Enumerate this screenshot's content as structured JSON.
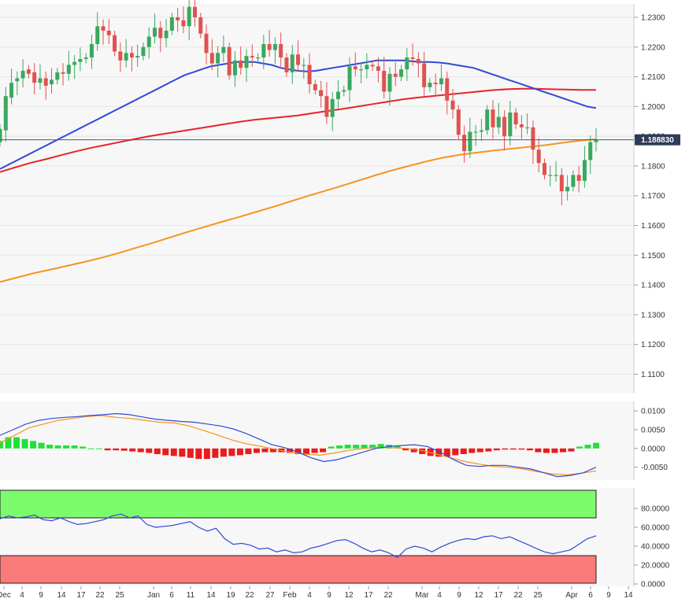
{
  "chart_data": [
    {
      "type": "candlestick",
      "instrument_last_price": "1.188830",
      "y_ticks": [
        "1.2300",
        "1.2200",
        "1.2100",
        "1.2000",
        "1.1900",
        "1.1800",
        "1.1700",
        "1.1600",
        "1.1500",
        "1.1400",
        "1.1300",
        "1.1200",
        "1.1100"
      ],
      "ylim": [
        1.1035,
        1.2345
      ],
      "x_ticks": [
        "Dec",
        "4",
        "9",
        "14",
        "17",
        "22",
        "25",
        "Jan",
        "6",
        "11",
        "14",
        "19",
        "22",
        "27",
        "Feb",
        "4",
        "9",
        "12",
        "17",
        "22",
        "Mar",
        "4",
        "9",
        "12",
        "17",
        "22",
        "25",
        "Apr",
        "6",
        "9",
        "14"
      ],
      "colors": {
        "up": "#3aa85f",
        "down": "#e0524f",
        "sma_fast": "#2f4bd6",
        "sma_mid": "#e8222a",
        "sma_slow": "#f7941d",
        "last_line": "#4a5a78",
        "badge": "#2e3a59"
      },
      "close": [
        1.1925,
        1.2035,
        1.208,
        1.2095,
        1.212,
        1.211,
        1.208,
        1.2095,
        1.207,
        1.209,
        1.2115,
        1.211,
        1.214,
        1.215,
        1.216,
        1.2165,
        1.221,
        1.227,
        1.2255,
        1.224,
        1.2185,
        1.2155,
        1.218,
        1.2165,
        1.217,
        1.22,
        1.2235,
        1.2265,
        1.223,
        1.2255,
        1.23,
        1.229,
        1.227,
        1.2335,
        1.23,
        1.2245,
        1.218,
        1.2145,
        1.218,
        1.22,
        1.2105,
        1.2155,
        1.213,
        1.217,
        1.2165,
        1.2165,
        1.221,
        1.219,
        1.221,
        1.2165,
        1.2115,
        1.2175,
        1.214,
        1.214,
        1.2075,
        1.2055,
        1.2035,
        1.1965,
        1.2025,
        1.205,
        1.2055,
        1.2135,
        1.2125,
        1.2125,
        1.214,
        1.2135,
        1.212,
        1.205,
        1.211,
        1.21,
        1.2125,
        1.2165,
        1.216,
        1.2145,
        1.2065,
        1.208,
        1.2075,
        1.2095,
        1.202,
        1.199,
        1.1905,
        1.185,
        1.1915,
        1.1915,
        1.192,
        1.199,
        1.193,
        1.1965,
        1.19,
        1.198,
        1.194,
        1.193,
        1.193,
        1.1855,
        1.181,
        1.177,
        1.177,
        1.177,
        1.1715,
        1.173,
        1.177,
        1.175,
        1.182,
        1.188,
        1.1888
      ],
      "open": [
        1.188,
        1.192,
        1.203,
        1.2085,
        1.2095,
        1.2125,
        1.2115,
        1.208,
        1.2095,
        1.2075,
        1.209,
        1.2115,
        1.211,
        1.214,
        1.215,
        1.216,
        1.2165,
        1.221,
        1.227,
        1.2255,
        1.224,
        1.2185,
        1.2155,
        1.218,
        1.2165,
        1.217,
        1.22,
        1.2235,
        1.2265,
        1.223,
        1.2255,
        1.23,
        1.229,
        1.227,
        1.2335,
        1.23,
        1.2245,
        1.218,
        1.2145,
        1.218,
        1.22,
        1.2105,
        1.2155,
        1.213,
        1.217,
        1.2165,
        1.2165,
        1.221,
        1.219,
        1.221,
        1.2165,
        1.2115,
        1.2175,
        1.214,
        1.214,
        1.2075,
        1.2055,
        1.2035,
        1.1965,
        1.2025,
        1.205,
        1.2055,
        1.2135,
        1.2125,
        1.2125,
        1.214,
        1.2135,
        1.212,
        1.205,
        1.211,
        1.21,
        1.2125,
        1.2165,
        1.216,
        1.2145,
        1.2065,
        1.208,
        1.2075,
        1.2095,
        1.202,
        1.199,
        1.1905,
        1.185,
        1.1915,
        1.1915,
        1.192,
        1.199,
        1.193,
        1.1965,
        1.19,
        1.198,
        1.194,
        1.193,
        1.193,
        1.1855,
        1.181,
        1.177,
        1.177,
        1.177,
        1.1715,
        1.173,
        1.177,
        1.175,
        1.182,
        1.188
      ],
      "sma_fast": [
        1.179,
        1.1805,
        1.182,
        1.1835,
        1.185,
        1.1865,
        1.188,
        1.1895,
        1.191,
        1.1925,
        1.194,
        1.1955,
        1.197,
        1.1985,
        1.2,
        1.2015,
        1.203,
        1.2045,
        1.206,
        1.2075,
        1.209,
        1.2105,
        1.2115,
        1.2125,
        1.2135,
        1.214,
        1.2145,
        1.215,
        1.215,
        1.215,
        1.2145,
        1.214,
        1.213,
        1.2125,
        1.212,
        1.2118,
        1.212,
        1.2125,
        1.213,
        1.2135,
        1.214,
        1.2145,
        1.215,
        1.2155,
        1.2155,
        1.2155,
        1.2155,
        1.2152,
        1.215,
        1.215,
        1.2148,
        1.2145,
        1.214,
        1.2135,
        1.213,
        1.212,
        1.211,
        1.21,
        1.209,
        1.208,
        1.207,
        1.206,
        1.205,
        1.204,
        1.203,
        1.202,
        1.201,
        1.2,
        1.1995
      ],
      "sma_mid": [
        1.178,
        1.1795,
        1.181,
        1.1822,
        1.1835,
        1.1848,
        1.186,
        1.187,
        1.188,
        1.189,
        1.19,
        1.1908,
        1.1916,
        1.1924,
        1.1932,
        1.194,
        1.1948,
        1.1955,
        1.196,
        1.1965,
        1.197,
        1.1978,
        1.1985,
        1.1992,
        1.2,
        1.2008,
        1.2016,
        1.2024,
        1.203,
        1.2035,
        1.204,
        1.2045,
        1.205,
        1.2055,
        1.2058,
        1.206,
        1.206,
        1.2058,
        1.2057,
        1.2056,
        1.2056
      ],
      "sma_slow": [
        1.141,
        1.1425,
        1.144,
        1.1452,
        1.1465,
        1.1478,
        1.1492,
        1.1508,
        1.1525,
        1.1542,
        1.156,
        1.1578,
        1.1595,
        1.1612,
        1.1628,
        1.1645,
        1.1662,
        1.168,
        1.1698,
        1.1715,
        1.1732,
        1.175,
        1.1768,
        1.1785,
        1.18,
        1.1815,
        1.1828,
        1.1838,
        1.1845,
        1.1852,
        1.1858,
        1.1864,
        1.187,
        1.1878,
        1.1885,
        1.189
      ],
      "macd_line": [
        0.0035,
        0.005,
        0.0065,
        0.0075,
        0.008,
        0.0083,
        0.0085,
        0.0088,
        0.009,
        0.0093,
        0.009,
        0.0084,
        0.0078,
        0.0075,
        0.0072,
        0.007,
        0.0065,
        0.006,
        0.0052,
        0.004,
        0.0025,
        0.001,
        0.0002,
        -0.001,
        -0.0025,
        -0.0035,
        -0.003,
        -0.002,
        -0.001,
        0.0,
        0.0005,
        0.0008,
        0.001,
        0.0005,
        -0.001,
        -0.003,
        -0.0045,
        -0.0048,
        -0.0045,
        -0.0045,
        -0.005,
        -0.0055,
        -0.0065,
        -0.0075,
        -0.0072,
        -0.0065,
        -0.005
      ],
      "macd_signal": [
        0.0015,
        0.0035,
        0.0055,
        0.0065,
        0.0075,
        0.008,
        0.0085,
        0.0088,
        0.0083,
        0.008,
        0.0075,
        0.007,
        0.0068,
        0.006,
        0.0048,
        0.0035,
        0.0022,
        0.0012,
        0.0005,
        -0.0003,
        -0.001,
        -0.0015,
        -0.0018,
        -0.0012,
        -0.0005,
        0.0,
        0.0003,
        0.0002,
        0.0,
        -0.0005,
        -0.0015,
        -0.0025,
        -0.0035,
        -0.0042,
        -0.0048,
        -0.005,
        -0.0055,
        -0.0062,
        -0.0068,
        -0.007,
        -0.0066,
        -0.006
      ],
      "macd_hist": [
        0.002,
        0.003,
        0.003,
        0.0025,
        0.002,
        0.0015,
        0.001,
        0.0008,
        0.0008,
        0.0008,
        0.0005,
        0.0,
        0.0,
        -0.0005,
        -0.0005,
        -0.0006,
        -0.0008,
        -0.001,
        -0.0012,
        -0.0015,
        -0.0018,
        -0.002,
        -0.0022,
        -0.0025,
        -0.0028,
        -0.0028,
        -0.0025,
        -0.0022,
        -0.002,
        -0.0018,
        -0.0015,
        -0.0012,
        -0.001,
        -0.001,
        -0.001,
        -0.0012,
        -0.0015,
        -0.0015,
        -0.0012,
        -0.001,
        0.0005,
        0.0008,
        0.001,
        0.001,
        0.001,
        0.001,
        0.0012,
        0.001,
        0.0008,
        -0.0005,
        -0.001,
        -0.0015,
        -0.002,
        -0.0022,
        -0.0022,
        -0.0018,
        -0.0015,
        -0.0012,
        -0.001,
        -0.0008,
        -0.0005,
        -0.0003,
        -0.0003,
        -0.0003,
        -0.0005,
        -0.001,
        -0.0012,
        -0.0012,
        -0.001,
        -0.0008,
        0.0005,
        0.001,
        0.0015
      ],
      "macd_ticks": [
        "0.0100",
        "0.0050",
        "0.0000",
        "-0.0050"
      ],
      "rsi": [
        69,
        72,
        70,
        71,
        73,
        68,
        67,
        70,
        66,
        63,
        64,
        66,
        68,
        72,
        74,
        70,
        72,
        63,
        60,
        61,
        62,
        64,
        66,
        60,
        56,
        59,
        48,
        42,
        43,
        41,
        37,
        38,
        34,
        36,
        33,
        34,
        38,
        40,
        43,
        46,
        47,
        43,
        38,
        34,
        36,
        33,
        28,
        37,
        40,
        38,
        34,
        39,
        43,
        46,
        48,
        47,
        50,
        51,
        48,
        50,
        46,
        42,
        38,
        34,
        32,
        34,
        36,
        42,
        48,
        51
      ],
      "rsi_ticks": [
        "80.0000",
        "60.0000",
        "40.0000",
        "20.0000",
        "0.0000"
      ],
      "rsi_overbought": 70,
      "rsi_oversold": 30
    }
  ]
}
